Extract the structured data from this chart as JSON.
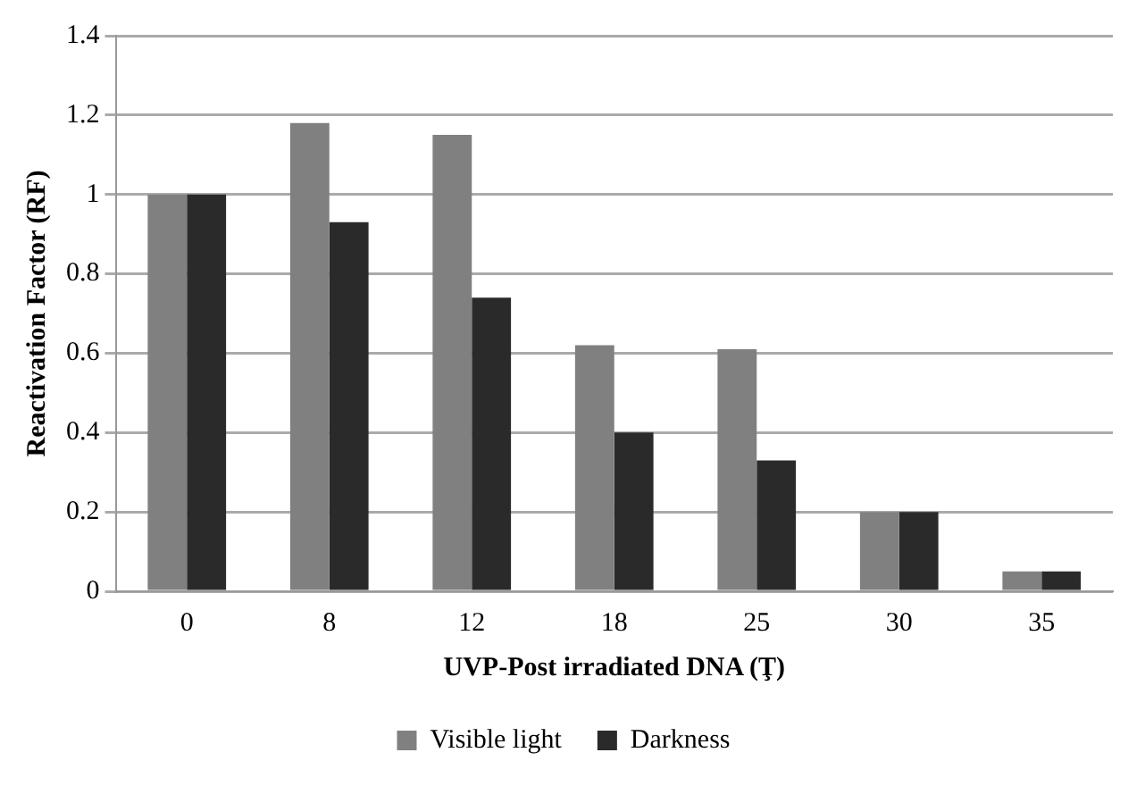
{
  "chart_data": {
    "type": "bar",
    "xlabel": "UVP-Post irradiated DNA (Ţ)",
    "ylabel": "Reactivation Factor (RF)",
    "categories": [
      "0",
      "8",
      "12",
      "18",
      "25",
      "30",
      "35"
    ],
    "series": [
      {
        "name": "Visible light",
        "color": "#808080",
        "values": [
          1.0,
          1.18,
          1.15,
          0.62,
          0.61,
          0.2,
          0.05
        ]
      },
      {
        "name": "Darkness",
        "color": "#2a2a2a",
        "values": [
          1.0,
          0.93,
          0.74,
          0.4,
          0.33,
          0.2,
          0.05
        ]
      }
    ],
    "ylim": [
      0,
      1.4
    ],
    "yticks": [
      0,
      0.2,
      0.4,
      0.6,
      0.8,
      1,
      1.2,
      1.4
    ],
    "grid": "y",
    "legend": "bottom"
  }
}
